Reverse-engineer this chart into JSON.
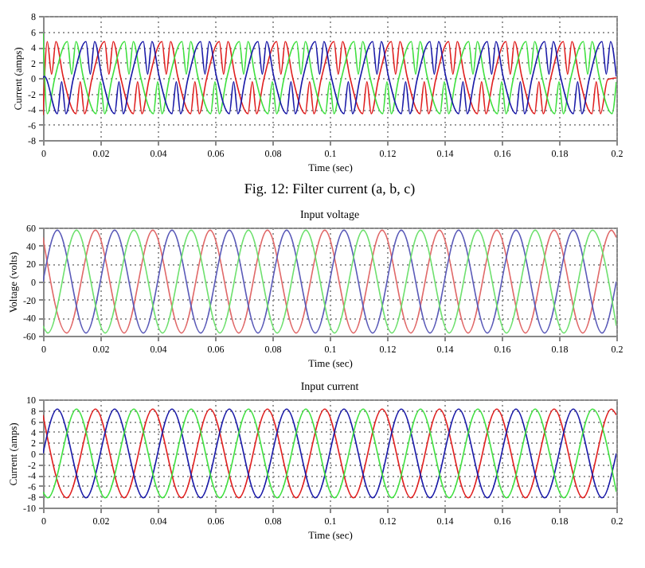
{
  "chart_data": [
    {
      "type": "line",
      "xlabel": "Time (sec)",
      "ylabel": "Current (amps)",
      "annotations": [
        "Fig. 12: Filter current (a, b, c)"
      ],
      "xlim": [
        0,
        0.2
      ],
      "ylim": [
        -8,
        8
      ],
      "xticks": [
        0,
        0.02,
        0.04,
        0.06,
        0.08,
        0.1,
        0.12,
        0.14,
        0.16,
        0.18,
        0.2
      ],
      "yticks": [
        -8,
        -6,
        -4,
        -2,
        0,
        2,
        4,
        6,
        8
      ],
      "grid": true,
      "marker": "none",
      "line_style": "solid",
      "series": [
        {
          "color": "#e02020",
          "x": [
            0,
            0.0015,
            0.003,
            0.0045,
            0.007,
            0.0115,
            0.013,
            0.0145,
            0.017,
            0.0215,
            0.023,
            0.0245,
            0.027,
            0.0315,
            0.033,
            0.0345,
            0.037,
            0.0415,
            0.043,
            0.0445,
            0.047,
            0.0515,
            0.053,
            0.0545,
            0.057,
            0.0615,
            0.063,
            0.0645,
            0.067,
            0.0715,
            0.073,
            0.0745,
            0.077,
            0.0815,
            0.083,
            0.0845,
            0.087,
            0.0915,
            0.093,
            0.0945,
            0.097,
            0.1015,
            0.103,
            0.1045,
            0.107,
            0.1115,
            0.113,
            0.1145,
            0.117,
            0.1215,
            0.123,
            0.1245,
            0.127,
            0.1315,
            0.133,
            0.1345,
            0.137,
            0.1415,
            0.143,
            0.1445,
            0.147,
            0.1515,
            0.153,
            0.1545,
            0.157,
            0.1615,
            0.163,
            0.1645,
            0.167,
            0.1715,
            0.173,
            0.1745,
            0.177,
            0.1815,
            0.183,
            0.1845,
            0.187,
            0.1915,
            0.193,
            0.1945,
            0.197,
            0.2
          ],
          "values": [
            -4.8,
            4.7,
            0.5,
            4.7,
            0.2,
            -4.6,
            -0.5,
            -4.6,
            -0.2,
            4.7,
            0.5,
            4.7,
            0.2,
            -4.6,
            -0.5,
            -4.6,
            -0.2,
            4.7,
            0.5,
            4.7,
            0.2,
            -4.6,
            -0.5,
            -4.6,
            -0.2,
            4.7,
            0.5,
            4.7,
            0.2,
            -4.6,
            -0.5,
            -4.6,
            -0.2,
            4.7,
            0.5,
            4.7,
            0.2,
            -4.6,
            -0.5,
            -4.6,
            -0.2,
            4.7,
            0.5,
            4.7,
            0.2,
            -4.6,
            -0.5,
            -4.6,
            -0.2,
            4.7,
            0.5,
            4.7,
            0.2,
            -4.6,
            -0.5,
            -4.6,
            -0.2,
            4.7,
            0.5,
            4.7,
            0.2,
            -4.6,
            -0.5,
            -4.6,
            -0.2,
            4.7,
            0.5,
            4.7,
            0.2,
            -4.6,
            -0.5,
            -4.6,
            -0.2,
            4.7,
            0.5,
            4.7,
            0.2,
            -4.6,
            -0.5,
            -4.6,
            -0.2,
            0
          ]
        },
        {
          "color": "#40e040",
          "x": [
            0,
            0.0015,
            0.004,
            0.0085,
            0.01,
            0.0115,
            0.014,
            0.0185,
            0.02,
            0.0215,
            0.024,
            0.0285,
            0.03,
            0.0315,
            0.034,
            0.0385,
            0.04,
            0.0415,
            0.044,
            0.0485,
            0.05,
            0.0515,
            0.054,
            0.0585,
            0.06,
            0.0615,
            0.064,
            0.0685,
            0.07,
            0.0715,
            0.074,
            0.0785,
            0.08,
            0.0815,
            0.084,
            0.0885,
            0.09,
            0.0915,
            0.094,
            0.0985,
            0.1,
            0.1015,
            0.104,
            0.1085,
            0.11,
            0.1115,
            0.114,
            0.1185,
            0.12,
            0.1215,
            0.124,
            0.1285,
            0.13,
            0.1315,
            0.134,
            0.1385,
            0.14,
            0.1415,
            0.144,
            0.1485,
            0.15,
            0.1515,
            0.154,
            0.1585,
            0.16,
            0.1615,
            0.164,
            0.1685,
            0.17,
            0.1715,
            0.174,
            0.1785,
            0.18,
            0.1815,
            0.184,
            0.1885,
            0.19,
            0.1915,
            0.194,
            0.1985,
            0.2
          ],
          "values": [
            5.8,
            -4.6,
            -0.2,
            4.7,
            0.5,
            4.7,
            0.2,
            -4.6,
            -0.5,
            -4.6,
            -0.2,
            4.7,
            0.5,
            4.7,
            0.2,
            -4.6,
            -0.5,
            -4.6,
            -0.2,
            4.7,
            0.5,
            4.7,
            0.2,
            -4.6,
            -0.5,
            -4.6,
            -0.2,
            4.7,
            0.5,
            4.7,
            0.2,
            -4.6,
            -0.5,
            -4.6,
            -0.2,
            4.7,
            0.5,
            4.7,
            0.2,
            -4.6,
            -0.5,
            -4.6,
            -0.2,
            4.7,
            0.5,
            4.7,
            0.2,
            -4.6,
            -0.5,
            -4.6,
            -0.2,
            4.7,
            0.5,
            4.7,
            0.2,
            -4.6,
            -0.5,
            -4.6,
            -0.2,
            4.7,
            0.5,
            4.7,
            0.2,
            -4.6,
            -0.5,
            -4.6,
            -0.2,
            4.7,
            0.5,
            4.7,
            0.2,
            -4.6,
            -0.5,
            -4.6,
            -0.2,
            4.7,
            0.5,
            4.7,
            0.2,
            -4.6,
            -0.5
          ]
        },
        {
          "color": "#1a1aa8",
          "x": [
            0,
            0.0005,
            0.005,
            0.0065,
            0.008,
            0.0105,
            0.015,
            0.0165,
            0.018,
            0.0205,
            0.025,
            0.0265,
            0.028,
            0.0305,
            0.035,
            0.0365,
            0.038,
            0.0405,
            0.045,
            0.0465,
            0.048,
            0.0505,
            0.055,
            0.0565,
            0.058,
            0.0605,
            0.065,
            0.0665,
            0.068,
            0.0705,
            0.075,
            0.0765,
            0.078,
            0.0805,
            0.085,
            0.0865,
            0.088,
            0.0905,
            0.095,
            0.0965,
            0.098,
            0.1005,
            0.105,
            0.1065,
            0.108,
            0.1105,
            0.115,
            0.1165,
            0.118,
            0.1205,
            0.125,
            0.1265,
            0.128,
            0.1305,
            0.135,
            0.1365,
            0.138,
            0.1405,
            0.145,
            0.1465,
            0.148,
            0.1505,
            0.155,
            0.1565,
            0.158,
            0.1605,
            0.165,
            0.1665,
            0.168,
            0.1705,
            0.175,
            0.1765,
            0.178,
            0.1805,
            0.185,
            0.1865,
            0.188,
            0.1905,
            0.195,
            0.1965,
            0.198,
            0.2
          ],
          "values": [
            0,
            0.2,
            -4.6,
            -0.5,
            -4.6,
            -0.2,
            4.7,
            0.5,
            4.7,
            0.2,
            -4.6,
            -0.5,
            -4.6,
            -0.2,
            4.7,
            0.5,
            4.7,
            0.2,
            -4.6,
            -0.5,
            -4.6,
            -0.2,
            4.7,
            0.5,
            4.7,
            0.2,
            -4.6,
            -0.5,
            -4.6,
            -0.2,
            4.7,
            0.5,
            4.7,
            0.2,
            -4.6,
            -0.5,
            -4.6,
            -0.2,
            4.7,
            0.5,
            4.7,
            0.2,
            -4.6,
            -0.5,
            -4.6,
            -0.2,
            4.7,
            0.5,
            4.7,
            0.2,
            -4.6,
            -0.5,
            -4.6,
            -0.2,
            4.7,
            0.5,
            4.7,
            0.2,
            -4.6,
            -0.5,
            -4.6,
            -0.2,
            4.7,
            0.5,
            4.7,
            0.2,
            -4.6,
            -0.5,
            -4.6,
            -0.2,
            4.7,
            0.5,
            4.7,
            0.2,
            -4.6,
            -0.5,
            -4.6,
            -0.2,
            4.7,
            0.5,
            4.7,
            0.2
          ]
        }
      ]
    },
    {
      "type": "line",
      "title": "Input voltage",
      "xlabel": "Time (sec)",
      "ylabel": "Voltage (volts)",
      "xlim": [
        0,
        0.2
      ],
      "ylim": [
        -60,
        60
      ],
      "xticks": [
        0,
        0.02,
        0.04,
        0.06,
        0.08,
        0.1,
        0.12,
        0.14,
        0.16,
        0.18,
        0.2
      ],
      "yticks": [
        -60,
        -40,
        -20,
        0,
        20,
        40,
        60
      ],
      "grid": true,
      "marker": "none",
      "line_style": "solid",
      "series": [
        {
          "color": "#e06868",
          "x": [
            0,
            0.0083,
            0.0183,
            0.0283,
            0.0383,
            0.0483,
            0.0583,
            0.0683,
            0.0783,
            0.0883,
            0.0983,
            0.1083,
            0.1183,
            0.1283,
            0.1383,
            0.1483,
            0.1583,
            0.1683,
            0.1783,
            0.1883,
            0.1983,
            0.2
          ],
          "values": [
            49,
            -57,
            57,
            -57,
            57,
            -57,
            57,
            -57,
            57,
            -57,
            57,
            -57,
            57,
            -57,
            57,
            -57,
            57,
            -57,
            57,
            -57,
            57,
            49
          ]
        },
        {
          "color": "#5a5ab8",
          "x": [
            0,
            0.005,
            0.015,
            0.025,
            0.035,
            0.045,
            0.055,
            0.065,
            0.075,
            0.085,
            0.095,
            0.105,
            0.115,
            0.125,
            0.135,
            0.145,
            0.155,
            0.165,
            0.175,
            0.185,
            0.195,
            0.2
          ],
          "values": [
            0,
            57,
            -57,
            57,
            -57,
            57,
            -57,
            57,
            -57,
            57,
            -57,
            57,
            -57,
            57,
            -57,
            57,
            -57,
            57,
            -57,
            57,
            -57,
            0
          ]
        },
        {
          "color": "#6ee06e",
          "x": [
            0,
            0.0017,
            0.0117,
            0.0217,
            0.0317,
            0.0417,
            0.0517,
            0.0617,
            0.0717,
            0.0817,
            0.0917,
            0.1017,
            0.1117,
            0.1217,
            0.1317,
            0.1417,
            0.1517,
            0.1617,
            0.1717,
            0.1817,
            0.1917,
            0.2
          ],
          "values": [
            -49,
            -57,
            57,
            -57,
            57,
            -57,
            57,
            -57,
            57,
            -57,
            57,
            -57,
            57,
            -57,
            57,
            -57,
            57,
            -57,
            57,
            -57,
            57,
            -49
          ]
        }
      ]
    },
    {
      "type": "line",
      "title": "Input current",
      "xlabel": "Time (sec)",
      "ylabel": "Current (amps)",
      "xlim": [
        0,
        0.2
      ],
      "ylim": [
        -10,
        10
      ],
      "xticks": [
        0,
        0.02,
        0.04,
        0.06,
        0.08,
        0.1,
        0.12,
        0.14,
        0.16,
        0.18,
        0.2
      ],
      "yticks": [
        -10,
        -8,
        -6,
        -4,
        -2,
        0,
        2,
        4,
        6,
        8,
        10
      ],
      "grid": true,
      "marker": "none",
      "line_style": "solid",
      "series": [
        {
          "color": "#e02020",
          "x": [
            0,
            0.0083,
            0.0183,
            0.0283,
            0.0383,
            0.0483,
            0.0583,
            0.0683,
            0.0783,
            0.0883,
            0.0983,
            0.1083,
            0.1183,
            0.1283,
            0.1383,
            0.1483,
            0.1583,
            0.1683,
            0.1783,
            0.1883,
            0.1983,
            0.2
          ],
          "values": [
            7.1,
            -8.2,
            8.2,
            -8.2,
            8.2,
            -8.2,
            8.2,
            -8.2,
            8.2,
            -8.2,
            8.2,
            -8.2,
            8.2,
            -8.2,
            8.2,
            -8.2,
            8.2,
            -8.2,
            8.2,
            -8.2,
            8.2,
            7.1
          ]
        },
        {
          "color": "#1a1aa8",
          "x": [
            0,
            0.005,
            0.015,
            0.025,
            0.035,
            0.045,
            0.055,
            0.065,
            0.075,
            0.085,
            0.095,
            0.105,
            0.115,
            0.125,
            0.135,
            0.145,
            0.155,
            0.165,
            0.175,
            0.185,
            0.195,
            0.2
          ],
          "values": [
            0,
            8.2,
            -8.2,
            8.2,
            -8.2,
            8.2,
            -8.2,
            8.2,
            -8.2,
            8.2,
            -8.2,
            8.2,
            -8.2,
            8.2,
            -8.2,
            8.2,
            -8.2,
            8.2,
            -8.2,
            8.2,
            -8.2,
            0
          ]
        },
        {
          "color": "#40e040",
          "x": [
            0,
            0.0017,
            0.0117,
            0.0217,
            0.0317,
            0.0417,
            0.0517,
            0.0617,
            0.0717,
            0.0817,
            0.0917,
            0.1017,
            0.1117,
            0.1217,
            0.1317,
            0.1417,
            0.1517,
            0.1617,
            0.1717,
            0.1817,
            0.1917,
            0.2
          ],
          "values": [
            -7.1,
            -8.2,
            8.2,
            -8.2,
            8.2,
            -8.2,
            8.2,
            -8.2,
            8.2,
            -8.2,
            8.2,
            -8.2,
            8.2,
            -8.2,
            8.2,
            -8.2,
            8.2,
            -8.2,
            8.2,
            -8.2,
            8.2,
            -7.1
          ]
        }
      ]
    }
  ]
}
